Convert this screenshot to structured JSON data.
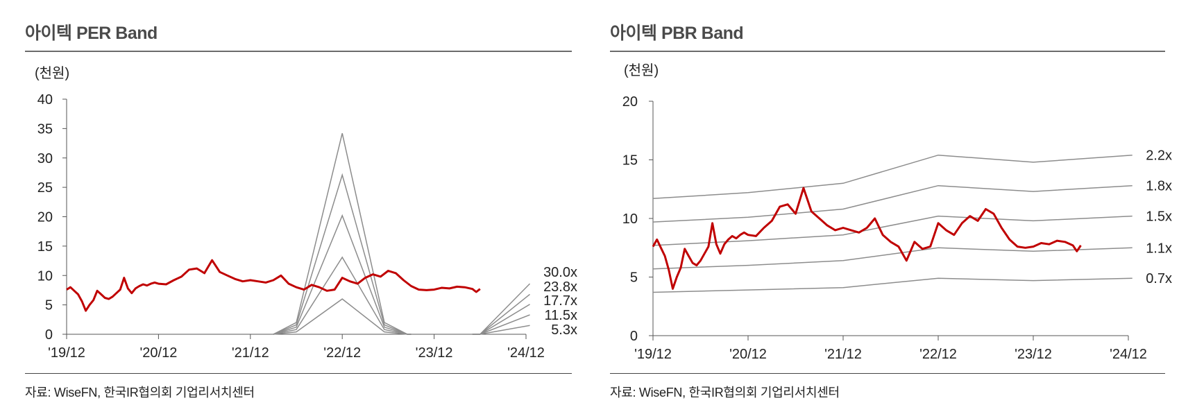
{
  "panels": [
    {
      "title": "아이텍 PER Band",
      "source": "자료: WiseFN, 한국IR협의회 기업리서치센터"
    },
    {
      "title": "아이텍 PBR Band",
      "source": "자료: WiseFN, 한국IR협의회 기업리서치센터"
    }
  ],
  "chart_data": [
    {
      "type": "line",
      "title": "아이텍 PER Band",
      "ylabel": "(천원)",
      "ylim": [
        0,
        40
      ],
      "yticks": [
        0,
        5,
        10,
        15,
        20,
        25,
        30,
        35,
        40
      ],
      "xlim": [
        0,
        60
      ],
      "xticks": [
        0,
        12,
        24,
        36,
        48,
        60
      ],
      "xtick_labels": [
        "'19/12",
        "'20/12",
        "'21/12",
        "'22/12",
        "'23/12",
        "'24/12"
      ],
      "price_color": "#c00000",
      "band_color": "#8c8c8c",
      "price": {
        "x": [
          0,
          0.5,
          1,
          1.5,
          2,
          2.5,
          3,
          3.5,
          4,
          4.5,
          5,
          5.5,
          6,
          6.5,
          7,
          7.5,
          8,
          8.5,
          9,
          9.5,
          10,
          10.5,
          11,
          11.5,
          12,
          13,
          14,
          15,
          16,
          17,
          18,
          19,
          20,
          21,
          22,
          23,
          24,
          25,
          26,
          27,
          28,
          29,
          30,
          31,
          32,
          33,
          34,
          35,
          36,
          37,
          38,
          39,
          40,
          41,
          42,
          43,
          44,
          45,
          46,
          47,
          48,
          49,
          50,
          51,
          52,
          53,
          53.5,
          54
        ],
        "y": [
          7.6,
          8.0,
          7.4,
          6.8,
          5.6,
          4.0,
          5.0,
          5.8,
          7.4,
          6.8,
          6.2,
          6.0,
          6.4,
          7.0,
          7.6,
          9.6,
          7.8,
          7.0,
          7.8,
          8.2,
          8.5,
          8.3,
          8.6,
          8.8,
          8.6,
          8.5,
          9.2,
          9.8,
          11.0,
          11.2,
          10.4,
          12.6,
          10.6,
          10.0,
          9.4,
          9.0,
          9.2,
          9.0,
          8.8,
          9.2,
          10.0,
          8.6,
          8.0,
          7.6,
          8.4,
          8.0,
          7.4,
          7.6,
          9.6,
          9.0,
          8.6,
          9.6,
          10.2,
          9.8,
          10.8,
          10.4,
          9.2,
          8.2,
          7.6,
          7.5,
          7.6,
          7.9,
          7.8,
          8.1,
          8.0,
          7.7,
          7.2,
          7.7
        ]
      },
      "bands": [
        {
          "label": "30.0x",
          "segments": [
            {
              "x": [
                27,
                30,
                36,
                41.5,
                44.5,
                45
              ],
              "y": [
                0,
                2,
                34.2,
                2,
                0,
                0
              ]
            },
            {
              "x": [
                53,
                54,
                60.5
              ],
              "y": [
                0,
                0,
                8.6
              ]
            }
          ]
        },
        {
          "label": "23.8x",
          "segments": [
            {
              "x": [
                27,
                30,
                36,
                41.5,
                44.5,
                45
              ],
              "y": [
                0,
                1.6,
                27.1,
                1.6,
                0,
                0
              ]
            },
            {
              "x": [
                53,
                54,
                60.5
              ],
              "y": [
                0,
                0,
                6.8
              ]
            }
          ]
        },
        {
          "label": "17.7x",
          "segments": [
            {
              "x": [
                27,
                30,
                36,
                41.5,
                44.5,
                45
              ],
              "y": [
                0,
                1.2,
                20.2,
                1.2,
                0,
                0
              ]
            },
            {
              "x": [
                53,
                54,
                60.5
              ],
              "y": [
                0,
                0,
                5.1
              ]
            }
          ]
        },
        {
          "label": "11.5x",
          "segments": [
            {
              "x": [
                27,
                30,
                36,
                41.5,
                44.5,
                45
              ],
              "y": [
                0,
                0.8,
                13.1,
                0.8,
                0,
                0
              ]
            },
            {
              "x": [
                53,
                54,
                60.5
              ],
              "y": [
                0,
                0,
                3.3
              ]
            }
          ]
        },
        {
          "label": "5.3x",
          "segments": [
            {
              "x": [
                27,
                30,
                36,
                41.5,
                44.5,
                45
              ],
              "y": [
                0,
                0.4,
                6.0,
                0.4,
                0,
                0
              ]
            },
            {
              "x": [
                53,
                54,
                60.5
              ],
              "y": [
                0,
                0,
                1.5
              ]
            }
          ]
        }
      ]
    },
    {
      "type": "line",
      "title": "아이텍 PBR Band",
      "ylabel": "(천원)",
      "ylim": [
        0,
        20
      ],
      "yticks": [
        0,
        5,
        10,
        15,
        20
      ],
      "xlim": [
        0,
        60
      ],
      "xticks": [
        0,
        12,
        24,
        36,
        48,
        60
      ],
      "xtick_labels": [
        "'19/12",
        "'20/12",
        "'21/12",
        "'22/12",
        "'23/12",
        "'24/12"
      ],
      "price_color": "#c00000",
      "band_color": "#8c8c8c",
      "price": {
        "x": [
          0,
          0.5,
          1,
          1.5,
          2,
          2.5,
          3,
          3.5,
          4,
          4.5,
          5,
          5.5,
          6,
          6.5,
          7,
          7.5,
          8,
          8.5,
          9,
          9.5,
          10,
          10.5,
          11,
          11.5,
          12,
          13,
          14,
          15,
          16,
          17,
          18,
          19,
          20,
          21,
          22,
          23,
          24,
          25,
          26,
          27,
          28,
          29,
          30,
          31,
          32,
          33,
          34,
          35,
          36,
          37,
          38,
          39,
          40,
          41,
          42,
          43,
          44,
          45,
          46,
          47,
          48,
          49,
          50,
          51,
          52,
          53,
          53.5,
          54
        ],
        "y": [
          7.6,
          8.2,
          7.5,
          6.8,
          5.6,
          4.0,
          5.0,
          5.8,
          7.4,
          6.8,
          6.2,
          6.0,
          6.4,
          7.0,
          7.6,
          9.6,
          7.8,
          7.0,
          7.8,
          8.2,
          8.5,
          8.3,
          8.6,
          8.8,
          8.6,
          8.5,
          9.2,
          9.8,
          11.0,
          11.2,
          10.4,
          12.6,
          10.6,
          10.0,
          9.4,
          9.0,
          9.2,
          9.0,
          8.8,
          9.2,
          10.0,
          8.6,
          8.0,
          7.6,
          6.4,
          8.0,
          7.4,
          7.6,
          9.6,
          9.0,
          8.6,
          9.6,
          10.2,
          9.8,
          10.8,
          10.4,
          9.2,
          8.2,
          7.6,
          7.5,
          7.6,
          7.9,
          7.8,
          8.1,
          8.0,
          7.7,
          7.2,
          7.7
        ]
      },
      "bands": [
        {
          "label": "2.2x",
          "segments": [
            {
              "x": [
                0,
                12,
                24,
                36,
                48,
                60.5
              ],
              "y": [
                11.7,
                12.2,
                13.0,
                15.4,
                14.8,
                15.4
              ]
            }
          ]
        },
        {
          "label": "1.8x",
          "segments": [
            {
              "x": [
                0,
                12,
                24,
                36,
                48,
                60.5
              ],
              "y": [
                9.7,
                10.1,
                10.8,
                12.8,
                12.3,
                12.8
              ]
            }
          ]
        },
        {
          "label": "1.5x",
          "segments": [
            {
              "x": [
                0,
                12,
                24,
                36,
                48,
                60.5
              ],
              "y": [
                7.7,
                8.1,
                8.6,
                10.2,
                9.8,
                10.2
              ]
            }
          ]
        },
        {
          "label": "1.1x",
          "segments": [
            {
              "x": [
                0,
                12,
                24,
                36,
                48,
                60.5
              ],
              "y": [
                5.7,
                6.0,
                6.4,
                7.5,
                7.2,
                7.5
              ]
            }
          ]
        },
        {
          "label": "0.7x",
          "segments": [
            {
              "x": [
                0,
                12,
                24,
                36,
                48,
                60.5
              ],
              "y": [
                3.7,
                3.9,
                4.1,
                4.9,
                4.7,
                4.9
              ]
            }
          ]
        }
      ]
    }
  ]
}
